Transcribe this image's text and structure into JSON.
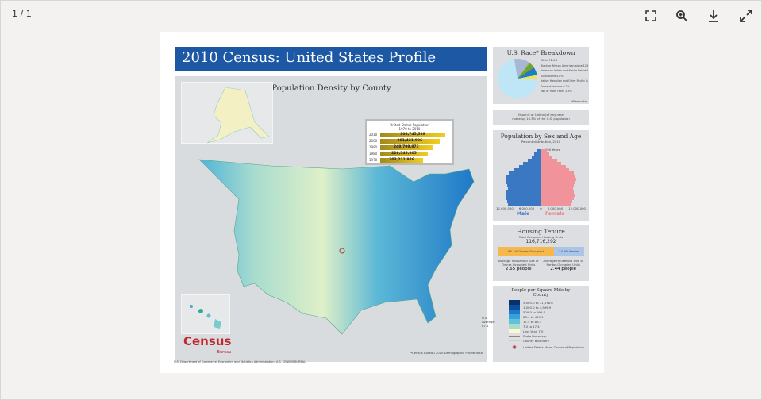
{
  "viewer": {
    "page_indicator": "1 / 1",
    "fit_icon": "fit-page-icon",
    "zoom_icon": "zoom-in-icon",
    "download_icon": "download-icon",
    "fullscreen_icon": "fullscreen-icon"
  },
  "doc": {
    "title": "2010 Census: United States Profile",
    "map_title": "Population Density by County",
    "population_box": {
      "title": "United States Population",
      "subtitle": "1970 to 2010",
      "rows": [
        {
          "year": "2010",
          "value": "308,745,538",
          "pct": 100
        },
        {
          "year": "2000",
          "value": "281,421,906",
          "pct": 91
        },
        {
          "year": "1990",
          "value": "248,709,873",
          "pct": 80
        },
        {
          "year": "1980",
          "value": "226,545,805",
          "pct": 73
        },
        {
          "year": "1970",
          "value": "203,211,926",
          "pct": 66
        }
      ]
    },
    "race": {
      "title": "U.S. Race* Breakdown",
      "slices": [
        {
          "label": "White 72.4%",
          "pct": 72.4,
          "color": "#bfe6f7"
        },
        {
          "label": "Black or African American alone 12.6%",
          "pct": 12.6,
          "color": "#a9b6d6"
        },
        {
          "label": "American Indian and Alaska Native 0.9%",
          "pct": 0.9,
          "color": "#8fbf3a"
        },
        {
          "label": "Asian alone 4.8%",
          "pct": 4.8,
          "color": "#6aa536"
        },
        {
          "label": "Native Hawaiian and Other Pacific Islander 0.2%",
          "pct": 0.2,
          "color": "#b5332e"
        },
        {
          "label": "Some other race 6.2%",
          "pct": 6.2,
          "color": "#1a7fc8"
        },
        {
          "label": "Two or more races 2.9%",
          "pct": 2.9,
          "color": "#efe25a"
        }
      ],
      "note": "*See note"
    },
    "hispanic": {
      "line1": "Hispanic or Latino (of any race)",
      "line2": "make up 16.3% of the U.S. population"
    },
    "pyramid": {
      "title": "Population by Sex and Age",
      "subtitle": "Percent distribution, 2010",
      "top_label": "100 Years",
      "male": "Male",
      "female": "Female",
      "axis": [
        "12,000,000",
        "6,000,000",
        "0",
        "6,000,000",
        "12,000,000"
      ],
      "male_vals": [
        10,
        15,
        20,
        30,
        40,
        50,
        60,
        72,
        78,
        80,
        80,
        76,
        74,
        78,
        80,
        78,
        76,
        74
      ],
      "female_vals": [
        15,
        20,
        28,
        38,
        48,
        58,
        66,
        76,
        80,
        82,
        80,
        76,
        74,
        76,
        78,
        76,
        73,
        71
      ]
    },
    "housing": {
      "title": "Housing Tenure",
      "total_label": "Total Occupied Housing Units",
      "total": "116,716,292",
      "owner": "65.1% Owner Occupied",
      "renter": "34.9% Renter Occupied",
      "owner_pct": 65.1,
      "owner_size_label": "Average Household Size of Owner-Occupied Units",
      "owner_size": "2.65 people",
      "renter_size_label": "Average Household Size of Renter-Occupied Units",
      "renter_size": "2.44 people"
    },
    "legend": {
      "title": "People per Square Mile by County",
      "items": [
        {
          "label": "5,000.0 to 71,678.6",
          "color": "#08306b"
        },
        {
          "label": "1,000.0 to 4,999.9",
          "color": "#0b4f9c"
        },
        {
          "label": "500.0 to 999.9",
          "color": "#1f78c8"
        },
        {
          "label": "88.4 to 499.9",
          "color": "#35a2dd"
        },
        {
          "label": "17.5 to 88.3",
          "color": "#63c2d8"
        },
        {
          "label": "7.0 to 17.4",
          "color": "#a5dccd"
        },
        {
          "label": "Less than 7.0",
          "color": "#fdf9cc"
        }
      ],
      "us_avg": "U.S. Average 87.4",
      "state_boundary": "State Boundary",
      "county_boundary": "County Boundary",
      "center": "United States Mean Center of Population"
    },
    "census_logo": "United States Census Bureau",
    "credit": "*Census Bureau 2010 Demographic Profile data",
    "footer": "U.S. Department of Commerce, Economics and Statistics Administration, U.S. CENSUS BUREAU"
  }
}
